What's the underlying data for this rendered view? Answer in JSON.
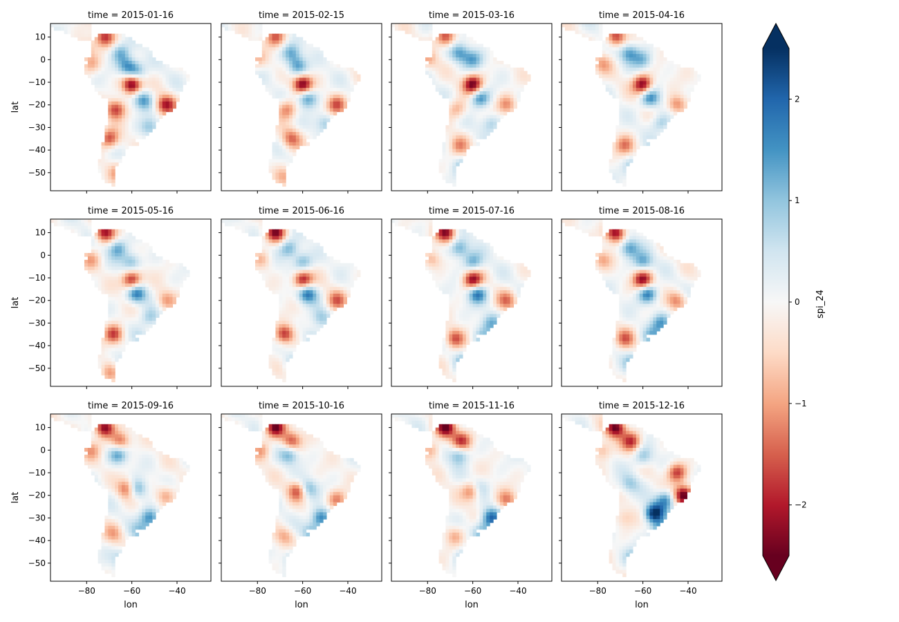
{
  "chart_data": {
    "type": "heatmap",
    "layout": "facet-grid",
    "rows": 3,
    "cols": 4,
    "facet_titles": [
      "time = 2015-01-16",
      "time = 2015-02-15",
      "time = 2015-03-16",
      "time = 2015-04-16",
      "time = 2015-05-16",
      "time = 2015-06-16",
      "time = 2015-07-16",
      "time = 2015-08-16",
      "time = 2015-09-16",
      "time = 2015-10-16",
      "time = 2015-11-16",
      "time = 2015-12-16"
    ],
    "xlabel": "lon",
    "ylabel": "lat",
    "xlim": [
      -96,
      -25
    ],
    "ylim": [
      -58,
      16
    ],
    "xticks": [
      -80,
      -60,
      -40
    ],
    "xtick_labels": [
      "−80",
      "−60",
      "−40"
    ],
    "yticks": [
      10,
      0,
      -10,
      -20,
      -30,
      -40,
      -50
    ],
    "ytick_labels": [
      "10",
      "0",
      "−10",
      "−20",
      "−30",
      "−40",
      "−50"
    ],
    "colorbar": {
      "label": "spi_24",
      "vmin": -2.5,
      "vmax": 2.5,
      "extend": "both",
      "ticks": [
        2,
        1,
        0,
        -1,
        -2
      ],
      "tick_labels": [
        "2",
        "1",
        "0",
        "−1",
        "−2"
      ],
      "colormap": "RdBu",
      "colormap_stops": [
        "#67001f",
        "#b2182b",
        "#d6604d",
        "#f4a582",
        "#fddbc7",
        "#f7f7f7",
        "#d1e5f0",
        "#92c5de",
        "#4393c3",
        "#2166ac",
        "#053061"
      ]
    },
    "anomalies": [
      [
        [
          -60,
          -11,
          -2.6
        ],
        [
          -45,
          -20,
          -2.0
        ],
        [
          -67,
          -22,
          -1.8
        ],
        [
          -70,
          -35,
          -1.7
        ],
        [
          -72,
          10,
          -1.7
        ],
        [
          -55,
          -18,
          1.5
        ],
        [
          -65,
          3,
          1.2
        ],
        [
          -62,
          -3,
          1.4
        ],
        [
          -58,
          -5,
          1.1
        ],
        [
          -52,
          -30,
          0.9
        ],
        [
          -78,
          -2,
          -0.9
        ],
        [
          -80,
          5,
          -0.7
        ],
        [
          -66,
          -50,
          -0.8
        ],
        [
          -50,
          -42,
          0.6
        ]
      ],
      [
        [
          -60,
          -11,
          -2.5
        ],
        [
          -45,
          -20,
          -1.5
        ],
        [
          -67,
          -22,
          -1.3
        ],
        [
          -72,
          10,
          -1.5
        ],
        [
          -65,
          -35,
          -1.3
        ],
        [
          -58,
          -17,
          1.6
        ],
        [
          -65,
          3,
          1.2
        ],
        [
          -62,
          -3,
          1.4
        ],
        [
          -50,
          -28,
          0.9
        ],
        [
          -80,
          0,
          -0.7
        ],
        [
          -68,
          -52,
          -0.8
        ]
      ],
      [
        [
          -60,
          -11,
          -2.5
        ],
        [
          -45,
          -20,
          -1.2
        ],
        [
          -67,
          -22,
          -1.0
        ],
        [
          -72,
          10,
          -1.7
        ],
        [
          -66,
          -38,
          -1.0
        ],
        [
          -57,
          -17,
          1.6
        ],
        [
          -66,
          3,
          1.3
        ],
        [
          -60,
          0,
          1.2
        ],
        [
          -52,
          -28,
          0.9
        ],
        [
          -80,
          0,
          -0.8
        ],
        [
          -64,
          -48,
          0.9
        ]
      ],
      [
        [
          -60,
          -11,
          -2.5
        ],
        [
          -45,
          -20,
          -1.3
        ],
        [
          -72,
          10,
          -1.8
        ],
        [
          -68,
          -38,
          -1.2
        ],
        [
          -57,
          -17,
          1.6
        ],
        [
          -66,
          3,
          1.3
        ],
        [
          -60,
          0,
          1.1
        ],
        [
          -52,
          -28,
          0.9
        ],
        [
          -78,
          -2,
          -0.8
        ],
        [
          -64,
          -48,
          1.0
        ],
        [
          -54,
          -40,
          0.7
        ]
      ],
      [
        [
          -60,
          -11,
          -2.3
        ],
        [
          -45,
          -20,
          -1.0
        ],
        [
          -72,
          10,
          -2.0
        ],
        [
          -68,
          -35,
          -1.8
        ],
        [
          -58,
          -17,
          1.8
        ],
        [
          -66,
          3,
          1.3
        ],
        [
          -60,
          -3,
          1.2
        ],
        [
          -52,
          -28,
          0.9
        ],
        [
          -78,
          -2,
          -0.8
        ],
        [
          -64,
          -48,
          0.7
        ],
        [
          -56,
          -36,
          0.6
        ],
        [
          -70,
          -52,
          -0.9
        ]
      ],
      [
        [
          -60,
          -11,
          -2.3
        ],
        [
          -45,
          -20,
          -1.3
        ],
        [
          -72,
          10,
          -2.1
        ],
        [
          -68,
          -35,
          -1.9
        ],
        [
          -58,
          -17,
          1.8
        ],
        [
          -66,
          3,
          1.3
        ],
        [
          -60,
          -3,
          1.3
        ],
        [
          -52,
          -28,
          0.9
        ],
        [
          -78,
          -2,
          -0.8
        ],
        [
          -64,
          -48,
          0.8
        ],
        [
          -56,
          -36,
          0.7
        ]
      ],
      [
        [
          -60,
          -11,
          -2.3
        ],
        [
          -45,
          -20,
          -1.2
        ],
        [
          -72,
          10,
          -2.2
        ],
        [
          -68,
          -37,
          -1.6
        ],
        [
          -58,
          -17,
          1.8
        ],
        [
          -66,
          3,
          1.4
        ],
        [
          -60,
          -3,
          1.3
        ],
        [
          -52,
          -30,
          1.1
        ],
        [
          -78,
          -2,
          -0.9
        ],
        [
          -64,
          -48,
          1.0
        ],
        [
          -56,
          -36,
          0.9
        ]
      ],
      [
        [
          -60,
          -11,
          -2.3
        ],
        [
          -45,
          -20,
          -1.2
        ],
        [
          -72,
          10,
          -2.3
        ],
        [
          -68,
          -37,
          -1.3
        ],
        [
          -58,
          -17,
          1.8
        ],
        [
          -66,
          3,
          1.4
        ],
        [
          -60,
          -3,
          1.3
        ],
        [
          -52,
          -30,
          1.3
        ],
        [
          -78,
          -2,
          -0.9
        ],
        [
          -64,
          -48,
          1.0
        ],
        [
          -56,
          -36,
          1.0
        ]
      ],
      [
        [
          -62,
          -17,
          -1.6
        ],
        [
          -45,
          -20,
          -1.0
        ],
        [
          -72,
          10,
          -2.4
        ],
        [
          -65,
          4,
          -1.5
        ],
        [
          -58,
          -17,
          1.5
        ],
        [
          -66,
          -2,
          1.3
        ],
        [
          -52,
          -30,
          1.6
        ],
        [
          -78,
          0,
          -0.9
        ],
        [
          -64,
          -48,
          0.9
        ],
        [
          -56,
          -36,
          0.9
        ],
        [
          -68,
          -37,
          -0.8
        ]
      ],
      [
        [
          -62,
          -18,
          -1.7
        ],
        [
          -45,
          -22,
          -1.2
        ],
        [
          -72,
          10,
          -2.4
        ],
        [
          -65,
          4,
          -1.6
        ],
        [
          -58,
          -17,
          1.3
        ],
        [
          -66,
          -2,
          1.2
        ],
        [
          -52,
          -30,
          1.8
        ],
        [
          -78,
          0,
          -0.9
        ],
        [
          -64,
          -48,
          0.9
        ],
        [
          -56,
          -36,
          1.0
        ],
        [
          -68,
          -38,
          -0.9
        ]
      ],
      [
        [
          -60,
          -18,
          -1.9
        ],
        [
          -45,
          -22,
          -1.2
        ],
        [
          -72,
          10,
          -2.5
        ],
        [
          -65,
          4,
          -1.8
        ],
        [
          -58,
          -17,
          1.2
        ],
        [
          -66,
          -2,
          1.2
        ],
        [
          -52,
          -30,
          1.9
        ],
        [
          -78,
          0,
          -1.0
        ],
        [
          -64,
          -48,
          0.9
        ],
        [
          -56,
          -36,
          1.1
        ],
        [
          -68,
          -38,
          -0.9
        ]
      ],
      [
        [
          -42,
          -20,
          -2.7
        ],
        [
          -45,
          -10,
          -1.8
        ],
        [
          -72,
          10,
          -2.5
        ],
        [
          -65,
          4,
          -1.8
        ],
        [
          -55,
          -28,
          2.5
        ],
        [
          -50,
          -22,
          1.6
        ],
        [
          -60,
          -3,
          1.0
        ],
        [
          -52,
          -36,
          1.5
        ],
        [
          -78,
          0,
          -1.0
        ],
        [
          -64,
          -48,
          1.0
        ],
        [
          -66,
          -15,
          0.8
        ],
        [
          -68,
          -30,
          -0.6
        ]
      ]
    ]
  }
}
